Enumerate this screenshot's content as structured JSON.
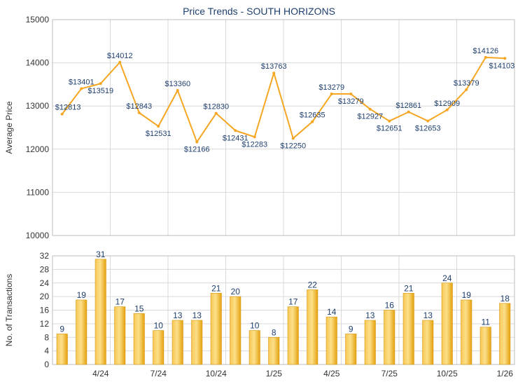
{
  "chart_data": [
    {
      "type": "line",
      "title": "Price Trends - SOUTH HORIZONS",
      "ylabel": "Average Price",
      "xlabel": "",
      "ylim": [
        10000,
        15000
      ],
      "yticks": [
        10000,
        11000,
        12000,
        13000,
        14000,
        15000
      ],
      "grid": true,
      "color": "#f5a623",
      "series": [
        {
          "values": [
            12813,
            13401,
            13519,
            14012,
            12843,
            12531,
            13360,
            12166,
            12830,
            12431,
            12283,
            13763,
            12250,
            12635,
            13279,
            13279,
            12927,
            12651,
            12861,
            12653,
            12909,
            13379,
            14126,
            14103
          ],
          "labels": [
            "$12813",
            "$13401",
            "$13519",
            "$14012",
            "$12843",
            "$12531",
            "$13360",
            "$12166",
            "$12830",
            "$12431",
            "$12283",
            "$13763",
            "$12250",
            "$12635",
            "$13279",
            "$13279",
            "$12927",
            "$12651",
            "$12861",
            "$12653",
            "$12909",
            "$13379",
            "$14126",
            "$14103"
          ]
        }
      ]
    },
    {
      "type": "bar",
      "title": "",
      "ylabel": "No. of Transactions",
      "xlabel": "",
      "ylim": [
        0,
        32
      ],
      "yticks": [
        0,
        4,
        8,
        12,
        16,
        20,
        24,
        28,
        32
      ],
      "grid": true,
      "color": "#f0b030",
      "xtick_labels": [
        "4/24",
        "7/24",
        "10/24",
        "1/25",
        "4/25",
        "7/25",
        "10/25",
        "1/26"
      ],
      "xtick_positions": [
        2.5,
        5.5,
        8.5,
        11.5,
        14.5,
        17.5,
        20.5,
        23.5
      ],
      "series": [
        {
          "values": [
            9,
            19,
            31,
            17,
            15,
            10,
            13,
            13,
            21,
            20,
            10,
            8,
            17,
            22,
            14,
            9,
            13,
            16,
            21,
            13,
            24,
            19,
            11,
            18
          ]
        }
      ]
    }
  ]
}
